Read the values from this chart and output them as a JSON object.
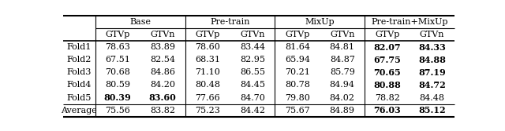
{
  "col_groups": [
    "Base",
    "Pre-train",
    "MixUp",
    "Pre-train+MixUp"
  ],
  "col_headers": [
    "GTVp",
    "GTVn",
    "GTVp",
    "GTVn",
    "GTVp",
    "GTVn",
    "GTVp",
    "GTVn"
  ],
  "row_headers": [
    "Fold1",
    "Fold2",
    "Fold3",
    "Fold4",
    "Fold5",
    "Average"
  ],
  "data": [
    [
      "78.63",
      "83.89",
      "78.60",
      "83.44",
      "81.64",
      "84.81",
      "82.07",
      "84.33"
    ],
    [
      "67.51",
      "82.54",
      "68.31",
      "82.95",
      "65.94",
      "84.87",
      "67.75",
      "84.88"
    ],
    [
      "70.68",
      "84.86",
      "71.10",
      "86.55",
      "70.21",
      "85.79",
      "70.65",
      "87.19"
    ],
    [
      "80.59",
      "84.20",
      "80.48",
      "84.45",
      "80.78",
      "84.94",
      "80.88",
      "84.72"
    ],
    [
      "80.39",
      "83.60",
      "77.66",
      "84.70",
      "79.80",
      "84.02",
      "78.82",
      "84.48"
    ],
    [
      "75.56",
      "83.82",
      "75.23",
      "84.42",
      "75.67",
      "84.89",
      "76.03",
      "85.12"
    ]
  ],
  "bold": [
    [
      false,
      false,
      false,
      false,
      false,
      false,
      true,
      true
    ],
    [
      false,
      false,
      false,
      false,
      false,
      false,
      true,
      true
    ],
    [
      false,
      false,
      false,
      false,
      false,
      false,
      true,
      true
    ],
    [
      false,
      false,
      false,
      false,
      false,
      false,
      true,
      true
    ],
    [
      true,
      true,
      false,
      false,
      false,
      false,
      false,
      false
    ],
    [
      false,
      false,
      false,
      false,
      false,
      false,
      true,
      true
    ]
  ],
  "bg_color": "#ffffff",
  "text_color": "#000000",
  "fontsize": 8.0,
  "header_fontsize": 8.0
}
